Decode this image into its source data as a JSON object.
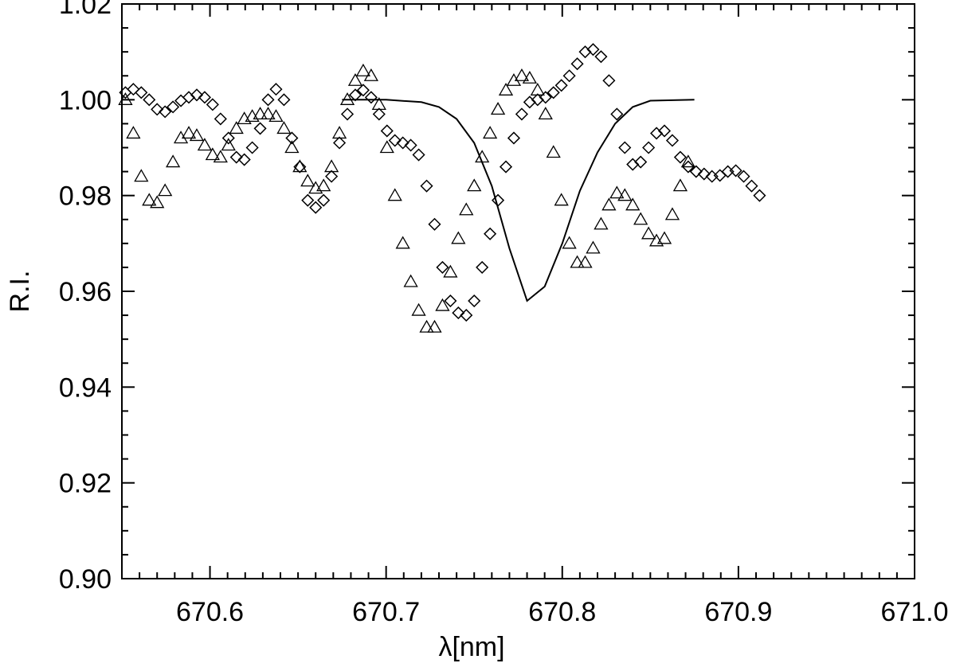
{
  "chart_data": {
    "type": "scatter",
    "title": "",
    "xlabel": "λ[nm]",
    "ylabel": "R.I.",
    "xlim": [
      670.55,
      671.0
    ],
    "ylim": [
      0.9,
      1.02
    ],
    "x_ticks": [
      670.6,
      670.7,
      670.8,
      670.9,
      671.0
    ],
    "x_tick_labels": [
      "670.6",
      "670.7",
      "670.8",
      "670.9",
      "671.0"
    ],
    "y_ticks": [
      0.9,
      0.92,
      0.94,
      0.96,
      0.98,
      1.0,
      1.02
    ],
    "y_tick_labels": [
      "0.90",
      "0.92",
      "0.94",
      "0.96",
      "0.98",
      "1.00",
      "1.02"
    ],
    "grid": false,
    "legend": "none",
    "series": [
      {
        "marker": "diamond",
        "x_start": 670.552,
        "x_step": 0.0045,
        "values": [
          1.0015,
          1.0022,
          1.0015,
          1.0,
          0.998,
          0.9975,
          0.9985,
          0.9998,
          1.0005,
          1.001,
          1.0005,
          0.999,
          0.996,
          0.992,
          0.988,
          0.9875,
          0.99,
          0.994,
          1.0,
          1.0022,
          1.0,
          0.992,
          0.986,
          0.979,
          0.9775,
          0.979,
          0.984,
          0.991,
          0.997,
          1.001,
          1.002,
          1.0005,
          0.997,
          0.9935,
          0.9915,
          0.991,
          0.9905,
          0.9885,
          0.982,
          0.974,
          0.965,
          0.958,
          0.9555,
          0.955,
          0.958,
          0.965,
          0.972,
          0.979,
          0.986,
          0.992,
          0.997,
          0.9995,
          1.0,
          1.0005,
          1.0015,
          1.003,
          1.005,
          1.0075,
          1.01,
          1.0105,
          1.009,
          1.004,
          0.997,
          0.99,
          0.9865,
          0.987,
          0.99,
          0.993,
          0.9935,
          0.9915,
          0.988,
          0.986,
          0.985,
          0.9845,
          0.984,
          0.9842,
          0.985,
          0.9852,
          0.984,
          0.982,
          0.98
        ]
      },
      {
        "marker": "triangle",
        "x_start": 670.552,
        "x_step": 0.0045,
        "values": [
          1.0,
          0.993,
          0.984,
          0.979,
          0.9785,
          0.981,
          0.987,
          0.992,
          0.993,
          0.9925,
          0.9905,
          0.9885,
          0.988,
          0.9905,
          0.994,
          0.996,
          0.9965,
          0.997,
          0.997,
          0.9965,
          0.994,
          0.99,
          0.986,
          0.983,
          0.9815,
          0.982,
          0.986,
          0.993,
          1.0,
          1.004,
          1.006,
          1.005,
          0.999,
          0.99,
          0.98,
          0.97,
          0.962,
          0.956,
          0.9525,
          0.9525,
          0.957,
          0.964,
          0.971,
          0.977,
          0.982,
          0.988,
          0.993,
          0.998,
          1.002,
          1.004,
          1.005,
          1.0045,
          1.002,
          0.997,
          0.989,
          0.979,
          0.97,
          0.966,
          0.966,
          0.969,
          0.974,
          0.978,
          0.9805,
          0.98,
          0.978,
          0.975,
          0.972,
          0.9705,
          0.971,
          0.976,
          0.982,
          0.987
        ]
      },
      {
        "marker": "line",
        "x": [
          670.675,
          670.7,
          670.72,
          670.73,
          670.74,
          670.75,
          670.76,
          670.77,
          670.78,
          670.79,
          670.8,
          670.81,
          670.82,
          670.83,
          670.84,
          670.85,
          670.875
        ],
        "values": [
          1.0,
          1.0,
          0.9995,
          0.9985,
          0.996,
          0.991,
          0.982,
          0.969,
          0.958,
          0.961,
          0.97,
          0.981,
          0.989,
          0.995,
          0.9985,
          0.9998,
          1.0
        ]
      }
    ]
  }
}
